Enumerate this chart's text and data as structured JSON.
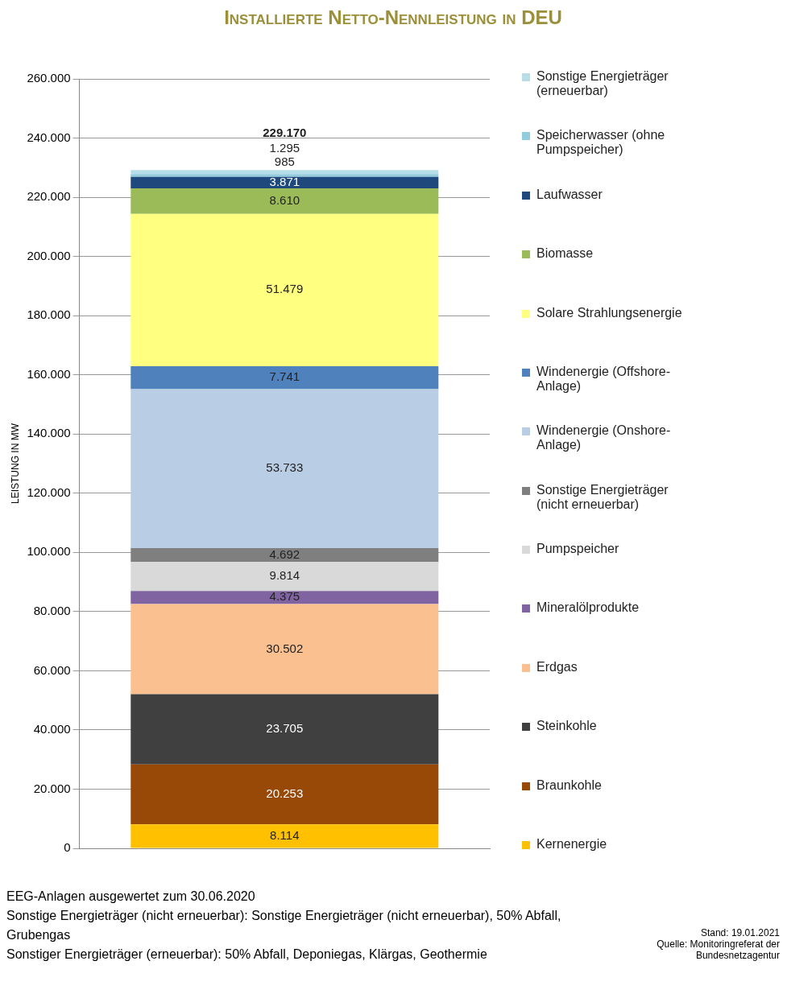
{
  "chart_data": {
    "type": "bar",
    "title": "Installierte Netto-Nennleistung in DEU",
    "ylabel": "LEISTUNG IN MW",
    "stacked": true,
    "categories": [
      null
    ],
    "series": [
      {
        "name": "Kernenergie",
        "color": "#ffc000",
        "values": [
          8114
        ],
        "value_labels": [
          "8.114"
        ]
      },
      {
        "name": "Braunkohle",
        "color": "#984807",
        "values": [
          20253
        ],
        "value_labels": [
          "20.253"
        ]
      },
      {
        "name": "Steinkohle",
        "color": "#404040",
        "values": [
          23705
        ],
        "value_labels": [
          "23.705"
        ]
      },
      {
        "name": "Erdgas",
        "color": "#fac090",
        "values": [
          30502
        ],
        "value_labels": [
          "30.502"
        ]
      },
      {
        "name": "Mineralölprodukte",
        "color": "#8064a2",
        "values": [
          4375
        ],
        "value_labels": [
          "4.375"
        ]
      },
      {
        "name": "Pumpspeicher",
        "color": "#d9d9d9",
        "values": [
          9814
        ],
        "value_labels": [
          "9.814"
        ]
      },
      {
        "name": "Sonstige Energieträger (nicht erneuerbar)",
        "color": "#7f7f7f",
        "values": [
          4692
        ],
        "value_labels": [
          "4.692"
        ]
      },
      {
        "name": "Windenergie (Onshore-Anlage)",
        "color": "#b9cde5",
        "values": [
          53733
        ],
        "value_labels": [
          "53.733"
        ]
      },
      {
        "name": "Windenergie (Offshore-Anlage)",
        "color": "#4f81bd",
        "values": [
          7741
        ],
        "value_labels": [
          "7.741"
        ]
      },
      {
        "name": "Solare Strahlungsenergie",
        "color": "#ffff80",
        "values": [
          51479
        ],
        "value_labels": [
          "51.479"
        ]
      },
      {
        "name": "Biomasse",
        "color": "#9bbb59",
        "values": [
          8610
        ],
        "value_labels": [
          "8.610"
        ]
      },
      {
        "name": "Laufwasser",
        "color": "#1f497d",
        "values": [
          3871
        ],
        "value_labels": [
          "3.871"
        ]
      },
      {
        "name": "Speicherwasser (ohne Pumpspeicher)",
        "color": "#93cddd",
        "values": [
          985
        ],
        "value_labels": [
          "985"
        ]
      },
      {
        "name": "Sonstige Energieträger (erneuerbar)",
        "color": "#b7dee8",
        "values": [
          1295
        ],
        "value_labels": [
          "1.295"
        ]
      }
    ],
    "totals": [
      "229.170"
    ],
    "ylim": [
      0,
      260000
    ],
    "yticks": [
      {
        "value": 0,
        "label": "0"
      },
      {
        "value": 20000,
        "label": "20.000"
      },
      {
        "value": 40000,
        "label": "40.000"
      },
      {
        "value": 60000,
        "label": "60.000"
      },
      {
        "value": 80000,
        "label": "80.000"
      },
      {
        "value": 100000,
        "label": "100.000"
      },
      {
        "value": 120000,
        "label": "120.000"
      },
      {
        "value": 140000,
        "label": "140.000"
      },
      {
        "value": 160000,
        "label": "160.000"
      },
      {
        "value": 180000,
        "label": "180.000"
      },
      {
        "value": 200000,
        "label": "200.000"
      },
      {
        "value": 220000,
        "label": "220.000"
      },
      {
        "value": 240000,
        "label": "240.000"
      },
      {
        "value": 260000,
        "label": "260.000"
      }
    ],
    "grid": "y",
    "tick_labels": "y",
    "legend": "right",
    "annotations": [
      "EEG-Anlagen ausgewertet zum 30.06.2020",
      "Sonstige Energieträger (nicht erneuerbar): Sonstige Energieträger (nicht erneuerbar), 50% Abfall, Grubengas",
      "Sonstiger Energieträger (erneuerbar): 50% Abfall, Deponiegas, Klärgas, Geothermie",
      "Stand: 19.01.2021",
      "Quelle: Monitoringreferat der Bundesnetzagentur"
    ]
  }
}
